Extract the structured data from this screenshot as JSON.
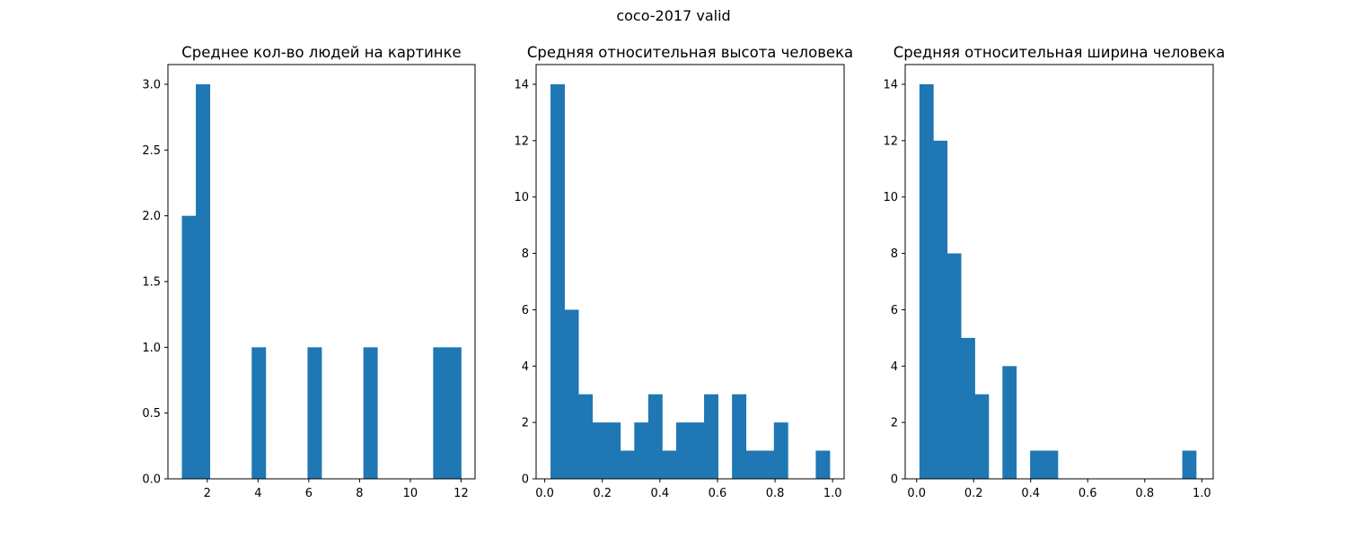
{
  "figure": {
    "suptitle": "coco-2017 valid"
  },
  "colors": {
    "bar": "#1f77b4",
    "axis": "#000000",
    "background": "#ffffff"
  },
  "chart_data": [
    {
      "type": "bar",
      "title": "Среднее кол-во людей на картинке",
      "xlabel": "",
      "ylabel": "",
      "bin_start": 1.0,
      "bin_width": 0.55,
      "values": [
        2,
        3,
        0,
        0,
        0,
        1,
        0,
        0,
        0,
        1,
        0,
        0,
        0,
        1,
        0,
        0,
        0,
        0,
        1,
        1
      ],
      "xlim": [
        0.45,
        12.55
      ],
      "ylim": [
        0,
        3.15
      ],
      "xticks": [
        2,
        4,
        6,
        8,
        10,
        12
      ],
      "xtick_labels": [
        "2",
        "4",
        "6",
        "8",
        "10",
        "12"
      ],
      "yticks": [
        0,
        0.5,
        1.0,
        1.5,
        2.0,
        2.5,
        3.0
      ],
      "ytick_labels": [
        "0.0",
        "0.5",
        "1.0",
        "1.5",
        "2.0",
        "2.5",
        "3.0"
      ],
      "grid": false
    },
    {
      "type": "bar",
      "title": "Средняя относительная высота человека",
      "xlabel": "",
      "ylabel": "",
      "bin_start": 0.02,
      "bin_width": 0.0485,
      "values": [
        14,
        6,
        3,
        2,
        2,
        1,
        2,
        3,
        1,
        2,
        2,
        3,
        0,
        3,
        1,
        1,
        2,
        0,
        0,
        1
      ],
      "xlim": [
        -0.03,
        1.04
      ],
      "ylim": [
        0,
        14.7
      ],
      "xticks": [
        0,
        0.2,
        0.4,
        0.6,
        0.8,
        1.0
      ],
      "xtick_labels": [
        "0.0",
        "0.2",
        "0.4",
        "0.6",
        "0.8",
        "1.0"
      ],
      "yticks": [
        0,
        2,
        4,
        6,
        8,
        10,
        12,
        14
      ],
      "ytick_labels": [
        "0",
        "2",
        "4",
        "6",
        "8",
        "10",
        "12",
        "14"
      ],
      "grid": false
    },
    {
      "type": "bar",
      "title": "Средняя относительная ширина человека",
      "xlabel": "",
      "ylabel": "",
      "bin_start": 0.01,
      "bin_width": 0.0485,
      "values": [
        14,
        12,
        8,
        5,
        3,
        0,
        4,
        0,
        1,
        1,
        0,
        0,
        0,
        0,
        0,
        0,
        0,
        0,
        0,
        1
      ],
      "xlim": [
        -0.04,
        1.04
      ],
      "ylim": [
        0,
        14.7
      ],
      "xticks": [
        0,
        0.2,
        0.4,
        0.6,
        0.8,
        1.0
      ],
      "xtick_labels": [
        "0.0",
        "0.2",
        "0.4",
        "0.6",
        "0.8",
        "1.0"
      ],
      "yticks": [
        0,
        2,
        4,
        6,
        8,
        10,
        12,
        14
      ],
      "ytick_labels": [
        "0",
        "2",
        "4",
        "6",
        "8",
        "10",
        "12",
        "14"
      ],
      "grid": false
    }
  ]
}
